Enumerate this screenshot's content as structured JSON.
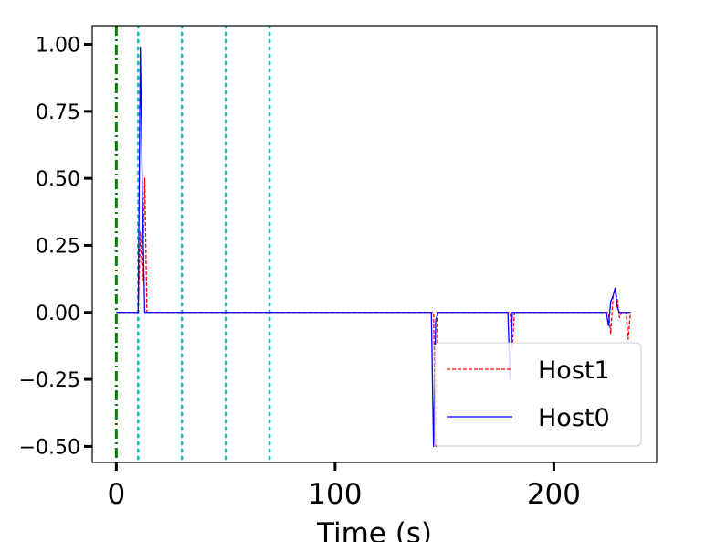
{
  "chart_data": {
    "type": "line",
    "xlabel": "Time (s)",
    "ylabel": "",
    "xlim": [
      -11,
      247
    ],
    "ylim": [
      -0.56,
      1.07
    ],
    "x_ticks": [
      0,
      100,
      200
    ],
    "x_tick_labels": [
      "0",
      "100",
      "200"
    ],
    "y_ticks": [
      1.0,
      0.75,
      0.5,
      0.25,
      0.0,
      -0.25,
      -0.5
    ],
    "y_tick_labels": [
      "1.00",
      "0.75",
      "0.50",
      "0.25",
      "0.00",
      "−0.25",
      "−0.50"
    ],
    "grid": false,
    "legend_position": "lower-right",
    "vertical_lines": [
      {
        "x": 0,
        "style": "dash-dot",
        "color": "#008000"
      },
      {
        "x": 10,
        "style": "dotted",
        "color": "#00bfbf"
      },
      {
        "x": 30,
        "style": "dotted",
        "color": "#00bfbf"
      },
      {
        "x": 50,
        "style": "dotted",
        "color": "#00bfbf"
      },
      {
        "x": 70,
        "style": "dotted",
        "color": "#00bfbf"
      }
    ],
    "series": [
      {
        "name": "Host1",
        "color": "#ff0000",
        "style": "dashed",
        "points": [
          [
            0,
            0
          ],
          [
            10,
            0
          ],
          [
            11,
            0.3
          ],
          [
            12,
            0.12
          ],
          [
            13,
            0.5
          ],
          [
            14,
            0
          ],
          [
            145,
            0
          ],
          [
            146,
            -0.5
          ],
          [
            147,
            0
          ],
          [
            180,
            0
          ],
          [
            181,
            -0.13
          ],
          [
            182,
            0
          ],
          [
            225,
            0
          ],
          [
            226,
            -0.08
          ],
          [
            227,
            0.05
          ],
          [
            228,
            0.09
          ],
          [
            229,
            0.05
          ],
          [
            230,
            -0.02
          ],
          [
            231,
            0
          ],
          [
            233,
            0
          ],
          [
            234,
            -0.1
          ],
          [
            235,
            0
          ]
        ]
      },
      {
        "name": "Host0",
        "color": "#0000ff",
        "style": "solid",
        "points": [
          [
            0,
            0
          ],
          [
            10,
            0
          ],
          [
            11,
            0.99
          ],
          [
            12,
            0.4
          ],
          [
            13,
            0
          ],
          [
            144,
            0
          ],
          [
            145,
            -0.5
          ],
          [
            146,
            -0.03
          ],
          [
            147,
            0
          ],
          [
            179,
            0
          ],
          [
            180,
            -0.25
          ],
          [
            181,
            0
          ],
          [
            224,
            0
          ],
          [
            225,
            -0.05
          ],
          [
            226,
            0.04
          ],
          [
            227,
            0.06
          ],
          [
            228,
            0.09
          ],
          [
            229,
            0.02
          ],
          [
            230,
            0
          ],
          [
            235,
            0
          ]
        ]
      }
    ]
  }
}
